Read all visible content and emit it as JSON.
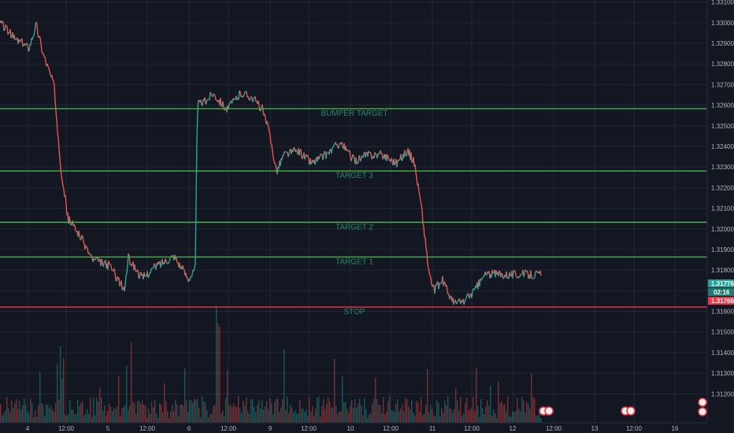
{
  "colors": {
    "background": "#131722",
    "grid": "#232733",
    "axis_text": "#b2b5be",
    "up": "#26a69a",
    "down": "#ef5350",
    "target_line": "#4caf50",
    "stop_line": "#f23645",
    "level_label": "#26896e",
    "price_badge": "#26a69a",
    "countdown_badge": "#1f7a72",
    "bid_badge": "#f23645"
  },
  "chart_data": {
    "type": "candlestick",
    "title": "",
    "xlabel": "",
    "ylabel": "",
    "ylim": [
      1.3106,
      1.3311
    ],
    "x_ticks": [
      "4",
      "12:00",
      "5",
      "12:00",
      "6",
      "12:00",
      "9",
      "12:00",
      "10",
      "12:00",
      "11",
      "12:00",
      "12",
      "12:00",
      "13",
      "12:00",
      "16"
    ],
    "y_ticks": [
      1.312,
      1.313,
      1.314,
      1.315,
      1.316,
      1.317,
      1.318,
      1.319,
      1.32,
      1.321,
      1.322,
      1.323,
      1.324,
      1.325,
      1.326,
      1.327,
      1.328,
      1.329,
      1.33,
      1.331
    ],
    "y_tick_labels": [
      "1.31200",
      "1.31300",
      "1.31400",
      "1.31500",
      "1.31600",
      "1.31700",
      "1.31800",
      "1.31900",
      "1.32000",
      "1.32100",
      "1.32200",
      "1.32300",
      "1.32400",
      "1.32500",
      "1.32600",
      "1.32700",
      "1.32800",
      "1.32900",
      "1.33000",
      "1.33100"
    ],
    "levels": [
      {
        "label": "BUMPER TARGET",
        "price": 1.32583,
        "price_label": "1.32583",
        "kind": "target"
      },
      {
        "label": "TARGET 3",
        "price": 1.32281,
        "price_label": "1.32281",
        "kind": "target"
      },
      {
        "label": "TARGET 2",
        "price": 1.32032,
        "price_label": "1.32032",
        "kind": "target"
      },
      {
        "label": "TARGET 1",
        "price": 1.31864,
        "price_label": "1.31864",
        "kind": "target"
      },
      {
        "label": "STOP",
        "price": 1.31621,
        "price_label": "1.31621",
        "kind": "stop"
      }
    ],
    "price_path": [
      [
        0,
        1.33
      ],
      [
        0.02,
        1.3292
      ],
      [
        0.04,
        1.3288
      ],
      [
        0.05,
        1.3299
      ],
      [
        0.06,
        1.3285
      ],
      [
        0.075,
        1.327
      ],
      [
        0.085,
        1.323
      ],
      [
        0.095,
        1.3205
      ],
      [
        0.11,
        1.3198
      ],
      [
        0.13,
        1.3185
      ],
      [
        0.155,
        1.3182
      ],
      [
        0.175,
        1.317
      ],
      [
        0.18,
        1.3186
      ],
      [
        0.2,
        1.3176
      ],
      [
        0.22,
        1.3182
      ],
      [
        0.245,
        1.3187
      ],
      [
        0.265,
        1.3176
      ],
      [
        0.275,
        1.318
      ],
      [
        0.278,
        1.326
      ],
      [
        0.29,
        1.3262
      ],
      [
        0.3,
        1.3266
      ],
      [
        0.32,
        1.3258
      ],
      [
        0.34,
        1.3266
      ],
      [
        0.355,
        1.3264
      ],
      [
        0.37,
        1.3258
      ],
      [
        0.38,
        1.3246
      ],
      [
        0.39,
        1.3228
      ],
      [
        0.4,
        1.3236
      ],
      [
        0.42,
        1.3238
      ],
      [
        0.44,
        1.3232
      ],
      [
        0.46,
        1.3236
      ],
      [
        0.48,
        1.3242
      ],
      [
        0.5,
        1.3233
      ],
      [
        0.52,
        1.3236
      ],
      [
        0.54,
        1.3236
      ],
      [
        0.56,
        1.3232
      ],
      [
        0.575,
        1.3238
      ],
      [
        0.585,
        1.3232
      ],
      [
        0.595,
        1.321
      ],
      [
        0.605,
        1.318
      ],
      [
        0.612,
        1.317
      ],
      [
        0.625,
        1.3175
      ],
      [
        0.64,
        1.3164
      ],
      [
        0.655,
        1.3165
      ],
      [
        0.67,
        1.317
      ],
      [
        0.685,
        1.3178
      ]
    ],
    "volume_note": "volume histogram along bottom"
  },
  "badges": {
    "last_price": "1.31776",
    "countdown": "02:16",
    "bid_price": "1.31766"
  }
}
